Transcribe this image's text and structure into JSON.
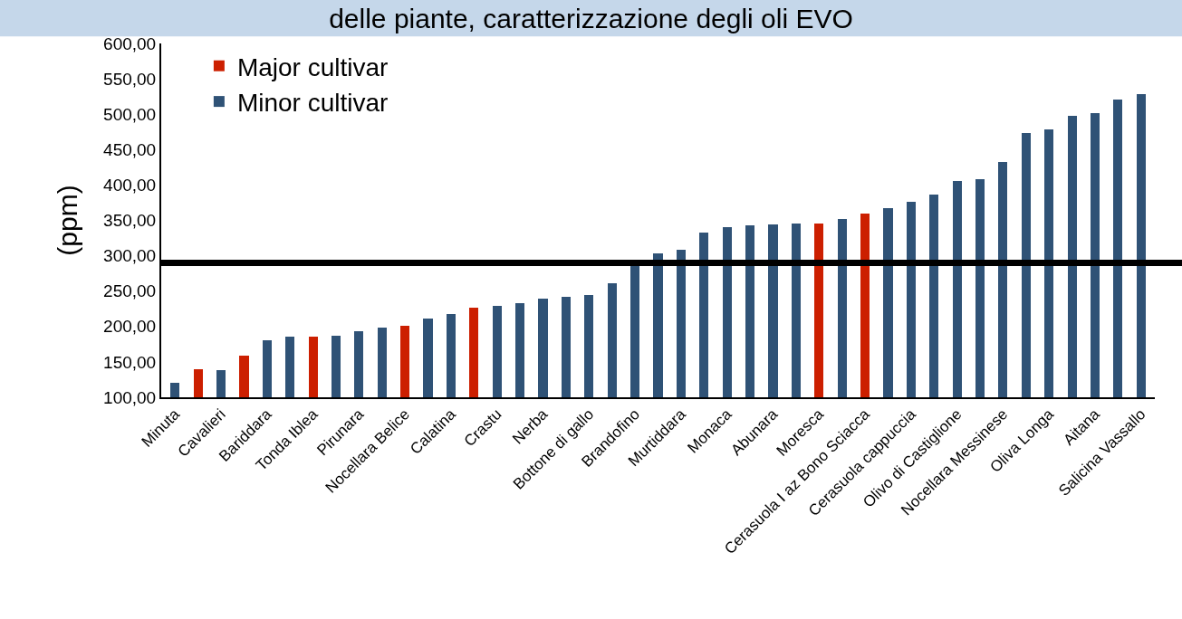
{
  "chart_data": {
    "type": "bar",
    "title": "delle piante, caratterizzazione degli oli EVO",
    "ylabel": "(ppm)",
    "categories": [
      "Minuta",
      null,
      "Cavalieri",
      null,
      "Bariddara",
      null,
      "Tonda Iblea",
      null,
      "Pirunara",
      null,
      "Nocellara Belice",
      null,
      "Calatina",
      null,
      "Crastu",
      null,
      "Nerba",
      null,
      "Bottone di gallo",
      null,
      "Brandofino",
      null,
      "Murtiddara",
      null,
      "Monaca",
      null,
      "Abunara",
      null,
      "Moresca",
      null,
      "Cerasuola I az Bono Sciacca",
      null,
      "Cerasuola cappuccia",
      null,
      "Olivo di Castiglione",
      null,
      "Nocellara Messinese",
      null,
      "Oliva Longa",
      null,
      "Aitana",
      null,
      "Salicina Vassallo"
    ],
    "series": [
      {
        "name": "Major cultivar",
        "color": "#cc1f00",
        "values": [
          null,
          140,
          null,
          159,
          null,
          null,
          186,
          null,
          null,
          null,
          201,
          null,
          null,
          227,
          null,
          null,
          null,
          null,
          null,
          null,
          null,
          null,
          null,
          null,
          null,
          null,
          null,
          null,
          345,
          null,
          359,
          null,
          null,
          null,
          null,
          null,
          null,
          null,
          null,
          null,
          null,
          null,
          null
        ]
      },
      {
        "name": "Minor cultivar",
        "color": "#2f5276",
        "values": [
          121,
          null,
          139,
          null,
          180,
          186,
          null,
          187,
          193,
          198,
          null,
          211,
          218,
          null,
          229,
          233,
          240,
          242,
          244,
          261,
          288,
          303,
          308,
          333,
          340,
          343,
          344,
          345,
          null,
          352,
          null,
          367,
          376,
          387,
          405,
          408,
          433,
          473,
          478,
          498,
          502,
          521,
          529
        ]
      }
    ],
    "stacked": true,
    "ylim": [
      100,
      600
    ],
    "yticks": [
      {
        "value": 100,
        "label": "100,00"
      },
      {
        "value": 150,
        "label": "150,00"
      },
      {
        "value": 200,
        "label": "200,00"
      },
      {
        "value": 250,
        "label": "250,00"
      },
      {
        "value": 300,
        "label": "300,00"
      },
      {
        "value": 350,
        "label": "350,00"
      },
      {
        "value": 400,
        "label": "400,00"
      },
      {
        "value": 450,
        "label": "450,00"
      },
      {
        "value": 500,
        "label": "500,00"
      },
      {
        "value": 550,
        "label": "550,00"
      },
      {
        "value": 600,
        "label": "600,00"
      }
    ],
    "ref_lines": [
      {
        "axis": "y",
        "value": 290,
        "color": "#000000"
      }
    ],
    "grid": false,
    "legend": "top left"
  }
}
